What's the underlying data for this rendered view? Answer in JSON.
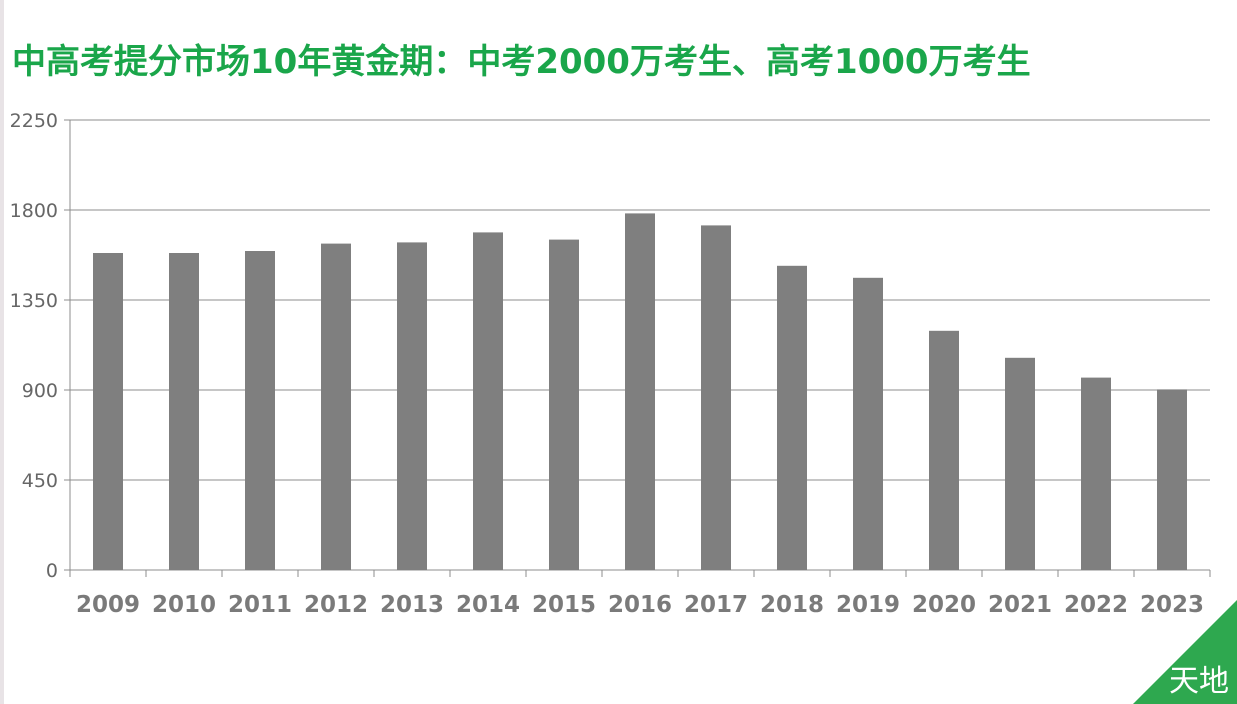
{
  "chart_data": {
    "type": "bar",
    "title": "中高考提分市场10年黄金期：中考2000万考生、高考1000万考生",
    "categories": [
      "2009",
      "2010",
      "2011",
      "2012",
      "2013",
      "2014",
      "2015",
      "2016",
      "2017",
      "2018",
      "2019",
      "2020",
      "2021",
      "2022",
      "2023"
    ],
    "values": [
      1585,
      1585,
      1595,
      1632,
      1638,
      1688,
      1652,
      1783,
      1723,
      1521,
      1461,
      1196,
      1061,
      962,
      903
    ],
    "ylim": [
      0,
      2250
    ],
    "yticks": [
      "0",
      "450",
      "900",
      "1350",
      "1800",
      "2250"
    ],
    "grid": true,
    "bar_color": "#7f7f7f",
    "title_color": "#1aa64a"
  },
  "watermark": {
    "text": "天地",
    "color": "#2ea84f"
  }
}
